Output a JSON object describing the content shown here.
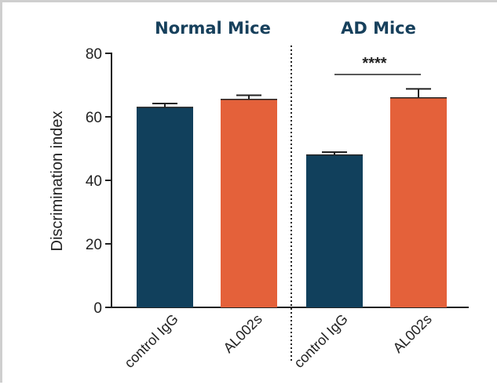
{
  "chart_data": {
    "type": "bar",
    "title": "",
    "xlabel": "",
    "ylabel": "Discrimination index",
    "ylim": [
      0,
      80
    ],
    "yticks": [
      "0",
      "20",
      "40",
      "60",
      "80"
    ],
    "groups": [
      {
        "name": "Normal Mice",
        "categories": [
          "control IgG",
          "AL002s"
        ]
      },
      {
        "name": "AD Mice",
        "categories": [
          "control IgG",
          "AL002s"
        ]
      }
    ],
    "bars": [
      {
        "group": "Normal Mice",
        "category": "control IgG",
        "value": 63,
        "error": 1.2,
        "color": "#11405c"
      },
      {
        "group": "Normal Mice",
        "category": "AL002s",
        "value": 65.5,
        "error": 1.3,
        "color": "#e4613a"
      },
      {
        "group": "AD Mice",
        "category": "control IgG",
        "value": 48,
        "error": 0.9,
        "color": "#11405c"
      },
      {
        "group": "AD Mice",
        "category": "AL002s",
        "value": 66,
        "error": 2.8,
        "color": "#e4613a"
      }
    ],
    "annotations": [
      {
        "text": "****",
        "between": [
          "AD Mice control IgG",
          "AD Mice AL002s"
        ]
      }
    ],
    "grid": false,
    "legend": "none"
  }
}
